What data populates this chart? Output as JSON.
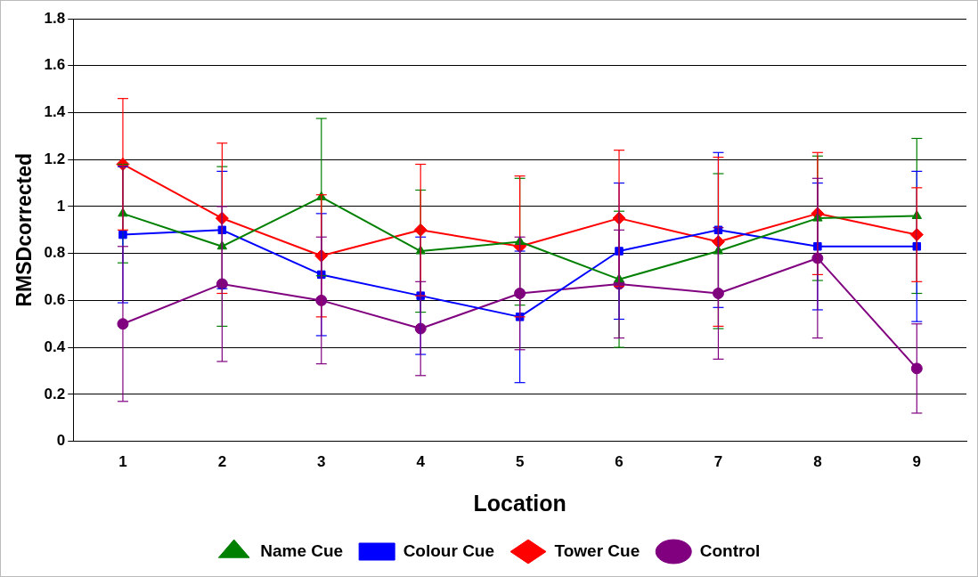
{
  "chart_data": {
    "type": "line",
    "xlabel": "Location",
    "ylabel": "RMSDcorrected",
    "categories": [
      "1",
      "2",
      "3",
      "4",
      "5",
      "6",
      "7",
      "8",
      "9"
    ],
    "ylim": [
      0,
      1.8
    ],
    "yticks": [
      0,
      0.2,
      0.4,
      0.6,
      0.8,
      1,
      1.2,
      1.4,
      1.6,
      1.8
    ],
    "grid": "y",
    "legend": "bottom",
    "line_style": "solid",
    "series": [
      {
        "name": "Name Cue",
        "color": "#008000",
        "marker": "triangle",
        "values": [
          0.97,
          0.83,
          1.04,
          0.81,
          0.85,
          0.69,
          0.81,
          0.95,
          0.96
        ],
        "errors": [
          0.21,
          0.34,
          0.335,
          0.26,
          0.27,
          0.29,
          0.33,
          0.265,
          0.33
        ]
      },
      {
        "name": "Colour Cue",
        "color": "#0000ff",
        "marker": "square",
        "values": [
          0.88,
          0.9,
          0.71,
          0.62,
          0.53,
          0.81,
          0.9,
          0.83,
          0.83
        ],
        "errors": [
          0.29,
          0.25,
          0.26,
          0.25,
          0.28,
          0.29,
          0.33,
          0.27,
          0.32
        ]
      },
      {
        "name": "Tower Cue",
        "color": "#ff0000",
        "marker": "diamond",
        "values": [
          1.18,
          0.95,
          0.79,
          0.9,
          0.83,
          0.95,
          0.85,
          0.97,
          0.88
        ],
        "errors": [
          0.28,
          0.32,
          0.26,
          0.28,
          0.3,
          0.29,
          0.36,
          0.26,
          0.2
        ]
      },
      {
        "name": "Control",
        "color": "#800080",
        "marker": "circle",
        "values": [
          0.5,
          0.67,
          0.6,
          0.48,
          0.63,
          0.67,
          0.63,
          0.78,
          0.31
        ],
        "errors": [
          0.33,
          0.33,
          0.27,
          0.2,
          0.24,
          0.23,
          0.28,
          0.34,
          0.19
        ]
      }
    ]
  }
}
